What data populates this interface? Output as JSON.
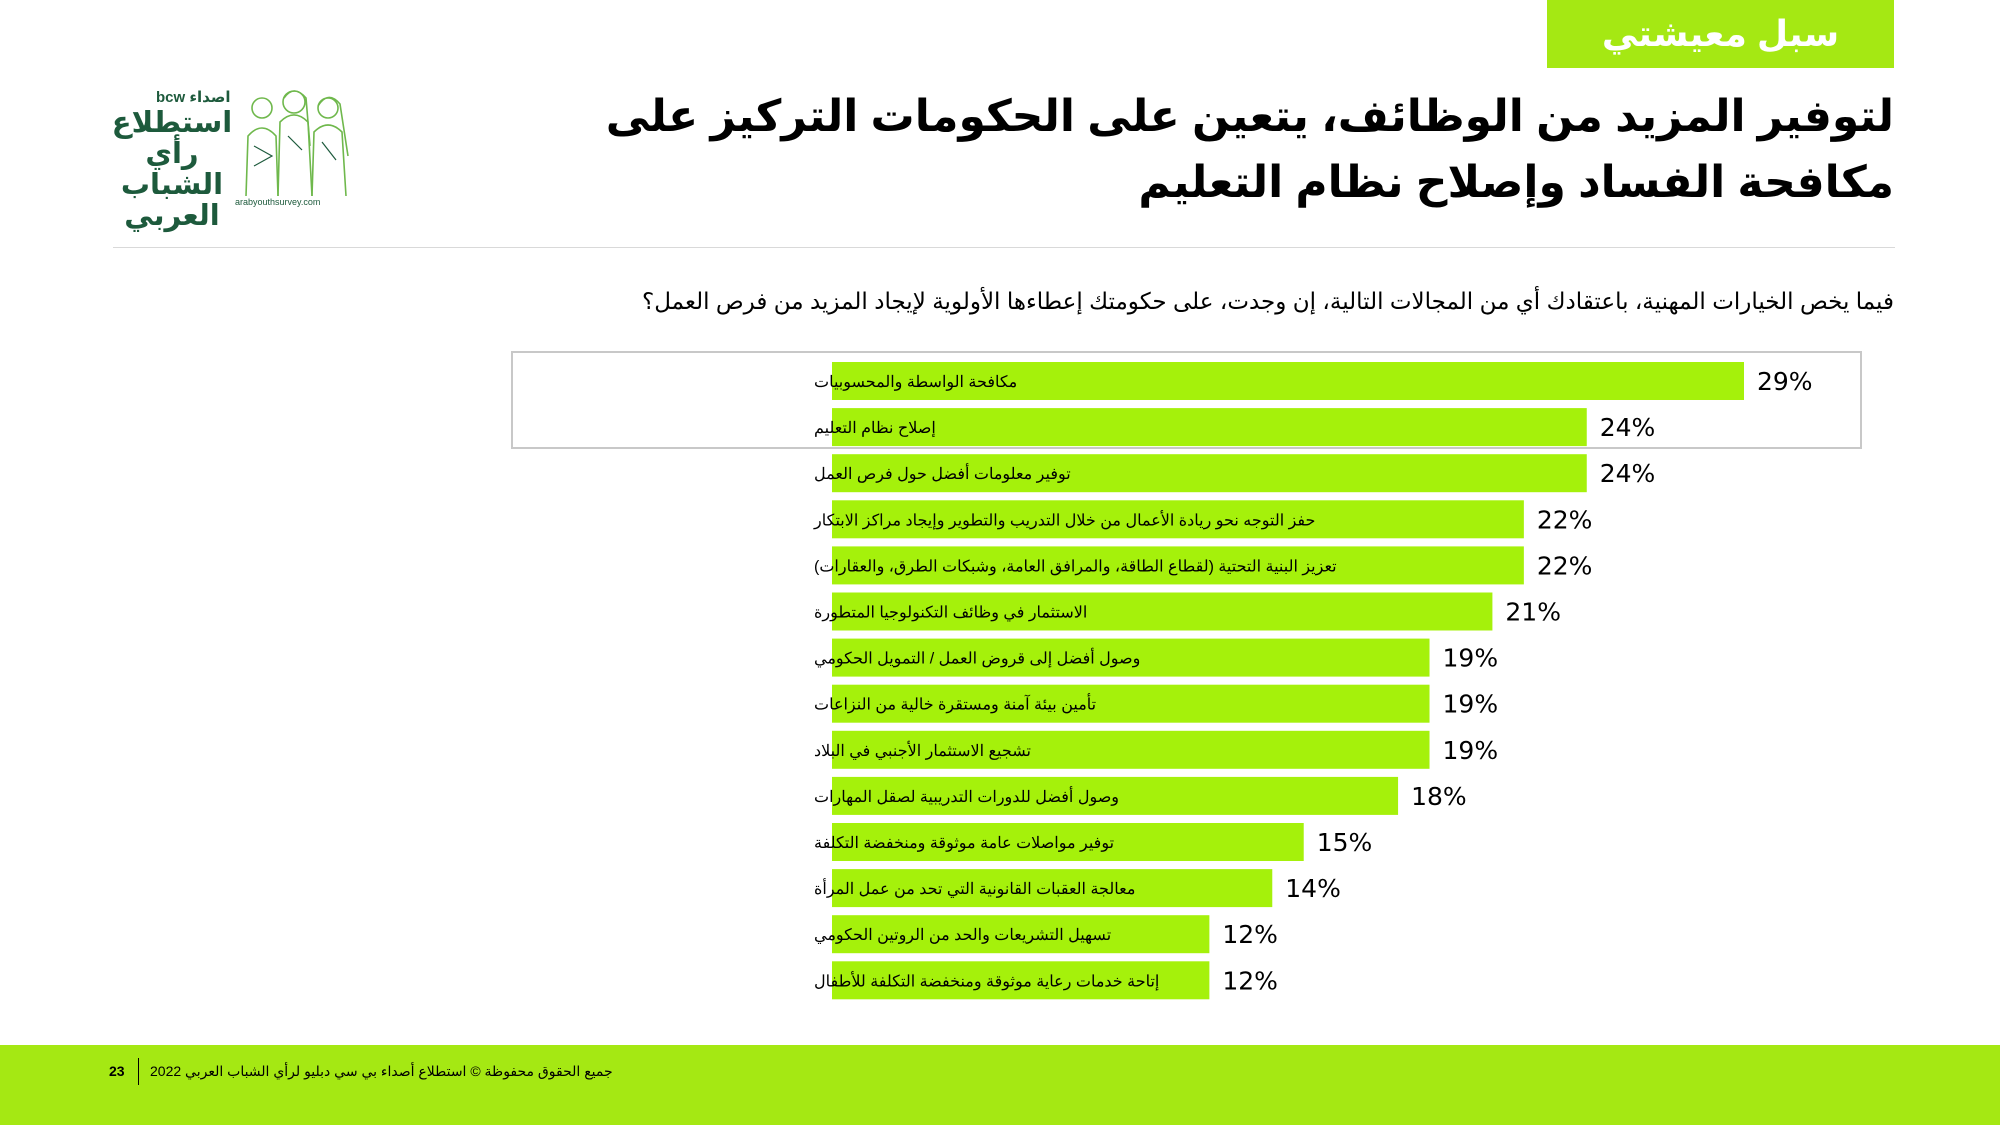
{
  "header": {
    "section_tag": "سبل معيشتي",
    "title": "لتوفير المزيد من الوظائف، يتعين على الحكومات التركيز على مكافحة الفساد وإصلاح نظام التعليم"
  },
  "logo": {
    "brand_asda": "اصداء",
    "brand_bcw": "bcw",
    "title_line1": "استطلاع",
    "title_line2": "رأي الشباب",
    "title_line3": "العربي",
    "url": "arabyouthsurvey.com"
  },
  "question": "فيما يخص الخيارات المهنية، باعتقادك أي من المجالات التالية، إن وجدت، على حكومتك إعطاءها الأولوية لإيجاد المزيد من فرص العمل؟",
  "colors": {
    "accent": "#a5e813",
    "bar": "#a5f10b"
  },
  "chart_data": {
    "type": "bar",
    "orientation": "horizontal",
    "value_suffix": "%",
    "xlim": [
      0,
      30
    ],
    "highlighted_count": 2,
    "categories": [
      "مكافحة الواسطة والمحسوبيات",
      "إصلاح نظام التعليم",
      "توفير معلومات أفضل حول فرص العمل",
      "حفز التوجه نحو ريادة الأعمال من خلال التدريب والتطوير وإيجاد مراكز الابتكار",
      "تعزيز البنية التحتية (لقطاع الطاقة، والمرافق العامة، وشبكات الطرق، والعقارات)",
      "الاستثمار في وظائف التكنولوجيا المتطورة",
      "وصول أفضل إلى قروض العمل / التمويل الحكومي",
      "تأمين بيئة آمنة ومستقرة خالية من النزاعات",
      "تشجيع الاستثمار الأجنبي في البلاد",
      "وصول أفضل للدورات التدريبية لصقل المهارات",
      "توفير مواصلات عامة موثوقة ومنخفضة التكلفة",
      "معالجة العقبات القانونية التي تحد من عمل المرأة",
      "تسهيل التشريعات والحد من الروتين الحكومي",
      "إتاحة خدمات رعاية موثوقة ومنخفضة التكلفة للأطفال"
    ],
    "values": [
      29,
      24,
      24,
      22,
      22,
      21,
      19,
      19,
      19,
      18,
      15,
      14,
      12,
      12
    ]
  },
  "footer": {
    "page_number": "23",
    "text": "جميع الحقوق محفوظة © استطلاع أصداء بي سي دبليو لرأي الشباب العربي 2022"
  }
}
